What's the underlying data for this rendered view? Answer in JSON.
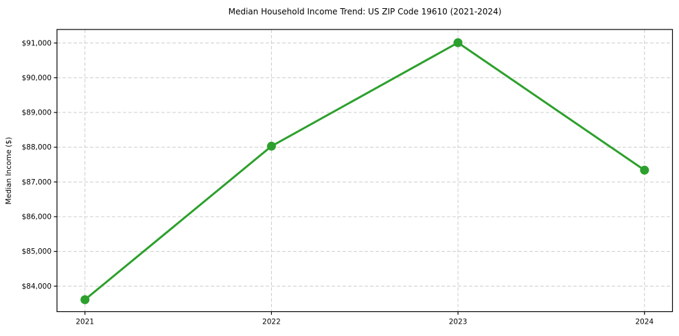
{
  "chart_data": {
    "type": "line",
    "title": "Median Household Income Trend: US ZIP Code 19610 (2021-2024)",
    "xlabel": "",
    "ylabel": "Median Income ($)",
    "categories": [
      "2021",
      "2022",
      "2023",
      "2024"
    ],
    "x": [
      2021,
      2022,
      2023,
      2024
    ],
    "values": [
      83610,
      88030,
      91010,
      87340
    ],
    "xlim": [
      2020.85,
      2024.15
    ],
    "ylim": [
      83265,
      91390
    ],
    "yticks": {
      "values": [
        84000,
        85000,
        86000,
        87000,
        88000,
        89000,
        90000,
        91000
      ],
      "labels": [
        "$84,000",
        "$85,000",
        "$86,000",
        "$87,000",
        "$88,000",
        "$89,000",
        "$90,000",
        "$91,000"
      ]
    },
    "grid": {
      "visible": true,
      "line_style": "dashed",
      "color": "#cccccc"
    },
    "legend": "none",
    "style": {
      "line_color": "#2ca02c",
      "marker": "circle",
      "marker_radius": 6.5,
      "line_width": 3,
      "background": "#ffffff",
      "border_color": "#000000",
      "tick_color": "#000000",
      "text_color": "#000000"
    }
  }
}
